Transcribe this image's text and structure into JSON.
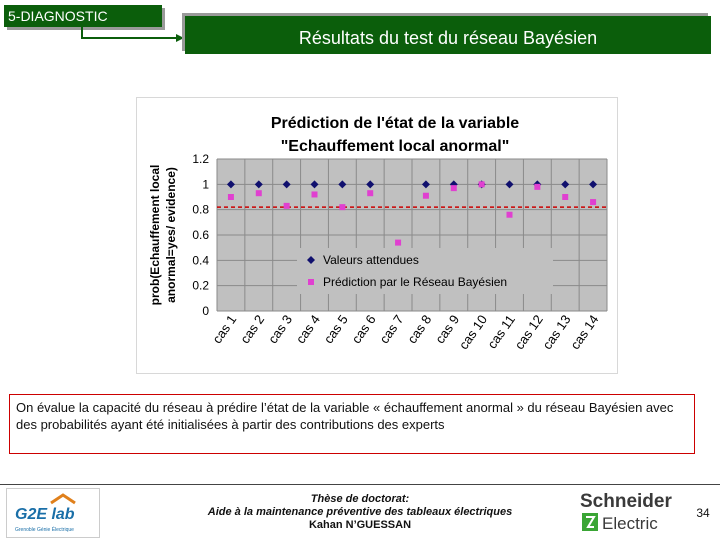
{
  "header": {
    "section": "5-DIAGNOSTIC",
    "title": "Résultats du test du réseau Bayésien"
  },
  "chart_data": {
    "type": "scatter",
    "title_line1": "Prédiction de l'état de la variable",
    "title_line2": "\"Echauffement local anormal\"",
    "ylabel_line1": "prob(Echauffement local",
    "ylabel_line2": "anormal=yes/ evidence)",
    "categories": [
      "cas 1",
      "cas 2",
      "cas 3",
      "cas 4",
      "cas 5",
      "cas 6",
      "cas 7",
      "cas 8",
      "cas 9",
      "cas 10",
      "cas 11",
      "cas 12",
      "cas 13",
      "cas 14"
    ],
    "yticks": [
      "0",
      "0.2",
      "0.4",
      "0.6",
      "0.8",
      "1",
      "1.2"
    ],
    "ylim": [
      0,
      1.2
    ],
    "threshold": 0.82,
    "grid": true,
    "legend_position": "inside-bottom-center",
    "series": [
      {
        "name": "Valeurs attendues",
        "marker": "diamond",
        "color": "#10106e",
        "values": [
          1,
          1,
          1,
          1,
          1,
          1,
          null,
          1,
          1,
          1,
          1,
          1,
          1,
          1
        ]
      },
      {
        "name": "Prédiction par le  Réseau Bayésien",
        "marker": "square",
        "color": "#e040d0",
        "values": [
          0.9,
          0.93,
          0.83,
          0.92,
          0.82,
          0.93,
          0.54,
          0.91,
          0.97,
          1.0,
          0.76,
          0.98,
          0.9,
          0.86
        ]
      }
    ],
    "threshold_color": "#cc0000",
    "plot_bg": "#c0c0c0"
  },
  "caption": {
    "text": "On évalue la capacité du réseau à prédire l’état de la variable « échauffement anormal » du réseau Bayésien avec des probabilités ayant été initialisées à partir des contributions des experts"
  },
  "footer": {
    "thesis_line1": "Thèse de doctorat:",
    "thesis_line2": "Aide à la maintenance préventive des tableaux électriques",
    "author": "Kahan N’GUESSAN",
    "page": "34",
    "logo_left_text": "G2E lab",
    "logo_left_sub": "Grenoble Génie Électrique",
    "logo_right_line1": "Schneider",
    "logo_right_line2": "Electric"
  }
}
